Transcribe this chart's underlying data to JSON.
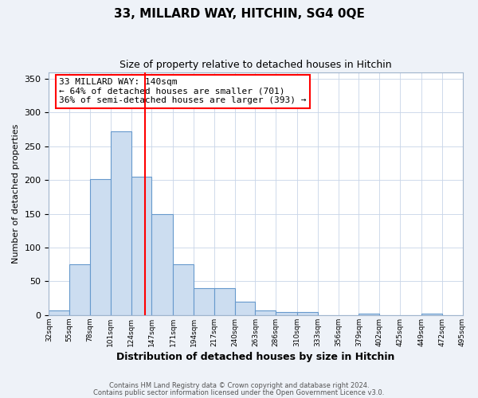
{
  "title": "33, MILLARD WAY, HITCHIN, SG4 0QE",
  "subtitle": "Size of property relative to detached houses in Hitchin",
  "xlabel": "Distribution of detached houses by size in Hitchin",
  "ylabel": "Number of detached properties",
  "bin_edges": [
    32,
    55,
    78,
    101,
    124,
    147,
    171,
    194,
    217,
    240,
    263,
    286,
    310,
    333,
    356,
    379,
    402,
    425,
    449,
    472,
    495
  ],
  "bar_heights": [
    7,
    75,
    202,
    272,
    205,
    150,
    75,
    40,
    40,
    20,
    7,
    5,
    5,
    0,
    0,
    2,
    0,
    0,
    2,
    0
  ],
  "bar_facecolor": "#ccddf0",
  "bar_edgecolor": "#6699cc",
  "vline_x": 140,
  "vline_color": "red",
  "ylim": [
    0,
    360
  ],
  "yticks": [
    0,
    50,
    100,
    150,
    200,
    250,
    300,
    350
  ],
  "annotation_text": "33 MILLARD WAY: 140sqm\n← 64% of detached houses are smaller (701)\n36% of semi-detached houses are larger (393) →",
  "footer1": "Contains HM Land Registry data © Crown copyright and database right 2024.",
  "footer2": "Contains public sector information licensed under the Open Government Licence v3.0.",
  "bg_color": "#eef2f8",
  "plot_bg_color": "#ffffff",
  "grid_color": "#c8d4e8",
  "title_fontsize": 11,
  "subtitle_fontsize": 9,
  "ylabel_fontsize": 8,
  "xlabel_fontsize": 9
}
